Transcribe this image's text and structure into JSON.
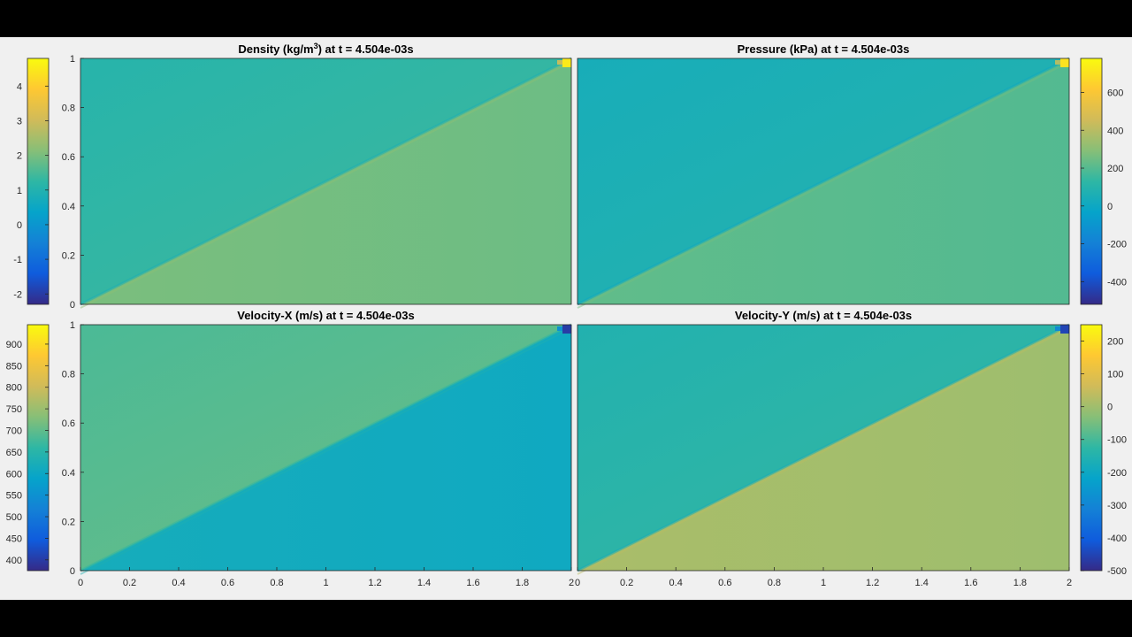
{
  "colors": {
    "parula": [
      "#352a87",
      "#0f5cdd",
      "#1481d6",
      "#06a4ca",
      "#2eb7a4",
      "#87bf77",
      "#d1bb59",
      "#fec832",
      "#f9fb0e"
    ],
    "frame_bg": "#f0f0f0",
    "letterbox": "#000000"
  },
  "chart_data": [
    {
      "type": "heatmap",
      "title_parts": [
        "Density (kg/m",
        "3",
        ") at t = 4.504e-03s"
      ],
      "xlim": [
        0,
        2
      ],
      "ylim": [
        0,
        1
      ],
      "x_ticks": [],
      "y_ticks": [
        "0",
        "0.2",
        "0.4",
        "0.6",
        "0.8",
        "1"
      ],
      "colorbar": {
        "side": "left",
        "range": [
          -2.3,
          4.8
        ],
        "ticks": [
          "-2",
          "-1",
          "0",
          "1",
          "2",
          "3",
          "4"
        ],
        "tick_values": [
          -2,
          -1,
          0,
          1,
          2,
          3,
          4
        ]
      },
      "field": {
        "shock_line": "y = x/2",
        "above": 1.3,
        "below": 1.95,
        "corner_peak": 4.5
      }
    },
    {
      "type": "heatmap",
      "title_parts": [
        "Pressure (kPa) at t = 4.504e-03s"
      ],
      "xlim": [
        0,
        2
      ],
      "ylim": [
        0,
        1
      ],
      "x_ticks": [],
      "y_ticks": [],
      "colorbar": {
        "side": "right",
        "range": [
          -520,
          780
        ],
        "ticks": [
          "600",
          "400",
          "200",
          "0",
          "-200",
          "-400"
        ],
        "tick_values": [
          600,
          400,
          200,
          0,
          -200,
          -400
        ]
      },
      "field": {
        "shock_line": "y = x/2",
        "above": 80,
        "below": 210,
        "corner_peak": 700
      }
    },
    {
      "type": "heatmap",
      "title_parts": [
        "Velocity-X (m/s) at t = 4.504e-03s"
      ],
      "xlim": [
        0,
        2
      ],
      "ylim": [
        0,
        1
      ],
      "x_ticks": [
        "0",
        "0.2",
        "0.4",
        "0.6",
        "0.8",
        "1",
        "1.2",
        "1.4",
        "1.6",
        "1.8",
        "2"
      ],
      "y_ticks": [
        "0",
        "0.2",
        "0.4",
        "0.6",
        "0.8",
        "1"
      ],
      "colorbar": {
        "side": "left",
        "range": [
          375,
          945
        ],
        "ticks": [
          "900",
          "850",
          "800",
          "750",
          "700",
          "650",
          "600",
          "550",
          "500",
          "450",
          "400"
        ],
        "tick_values": [
          900,
          850,
          800,
          750,
          700,
          650,
          600,
          550,
          500,
          450,
          400
        ]
      },
      "field": {
        "shock_line": "y = x/2",
        "above": 700,
        "below": 612,
        "corner_peak": 400
      }
    },
    {
      "type": "heatmap",
      "title_parts": [
        "Velocity-Y (m/s) at t = 4.504e-03s"
      ],
      "xlim": [
        0,
        2
      ],
      "ylim": [
        0,
        1
      ],
      "x_ticks": [
        "0",
        "0.2",
        "0.4",
        "0.6",
        "0.8",
        "1",
        "1.2",
        "1.4",
        "1.6",
        "1.8",
        "2"
      ],
      "y_ticks": [],
      "colorbar": {
        "side": "right",
        "range": [
          -500,
          250
        ],
        "ticks": [
          "200",
          "100",
          "0",
          "-100",
          "-200",
          "-300",
          "-400",
          "-500"
        ],
        "tick_values": [
          200,
          100,
          0,
          -100,
          -200,
          -300,
          -400,
          -500
        ]
      },
      "field": {
        "shock_line": "y = x/2",
        "above": -130,
        "below": 5,
        "corner_peak": -450
      }
    }
  ]
}
